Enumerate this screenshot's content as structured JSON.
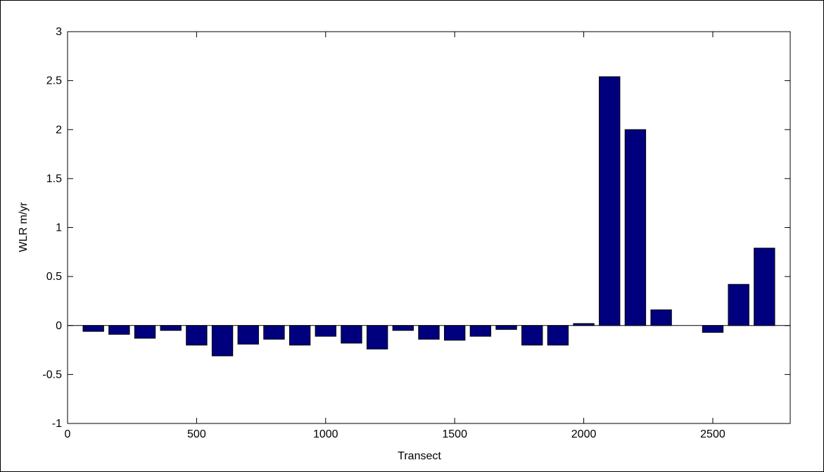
{
  "chart_data": {
    "type": "bar",
    "title": "",
    "xlabel": "Transect",
    "ylabel": "WLR m/yr",
    "xlim": [
      0,
      2800
    ],
    "ylim": [
      -1,
      3
    ],
    "xticks": [
      0,
      500,
      1000,
      1500,
      2000,
      2500
    ],
    "yticks": [
      -1,
      -0.5,
      0,
      0.5,
      1,
      1.5,
      2,
      2.5,
      3
    ],
    "grid": false,
    "bar_width": 80,
    "bar_color": "#00007f",
    "x": [
      100,
      200,
      300,
      400,
      500,
      600,
      700,
      800,
      900,
      1000,
      1100,
      1200,
      1300,
      1400,
      1500,
      1600,
      1700,
      1800,
      1900,
      2000,
      2100,
      2200,
      2300,
      2400,
      2500,
      2600,
      2700
    ],
    "values": [
      -0.06,
      -0.09,
      -0.13,
      -0.05,
      -0.2,
      -0.31,
      -0.19,
      -0.14,
      -0.2,
      -0.11,
      -0.18,
      -0.24,
      -0.05,
      -0.14,
      -0.15,
      -0.11,
      -0.04,
      -0.2,
      -0.2,
      0.02,
      2.54,
      2.0,
      0.16,
      0.0,
      -0.07,
      0.42,
      0.79
    ]
  }
}
